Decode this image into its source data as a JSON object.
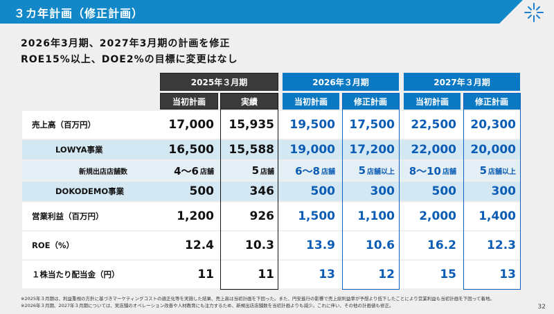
{
  "title": "３カ年計画（修正計画）",
  "subtitle_lines": [
    "2026年3月期、2027年3月期の計画を修正",
    "ROE15%以上、DOE2%の目標に変更はなし"
  ],
  "colors": {
    "title_bar": "#1288c8",
    "dark_header": "#3a3a3a",
    "blue_header": "#0a78c2",
    "plan_text": "#0a5cb5",
    "row_blue": "#d4e8f4"
  },
  "table": {
    "periods": [
      "2025年３月期",
      "2026年３月期",
      "2027年３月期"
    ],
    "columns": [
      "当初計画",
      "実績",
      "当初計画",
      "修正計画",
      "当初計画",
      "修正計画"
    ],
    "rows": [
      {
        "label": "売上高（百万円）",
        "style": "white",
        "indent": 0,
        "values": [
          {
            "v": "17,000"
          },
          {
            "v": "15,935"
          },
          {
            "v": "19,500"
          },
          {
            "v": "17,500"
          },
          {
            "v": "22,500"
          },
          {
            "v": "20,300"
          }
        ]
      },
      {
        "label": "LOWYA事業",
        "style": "blue",
        "indent": 1,
        "values": [
          {
            "v": "16,500"
          },
          {
            "v": "15,588"
          },
          {
            "v": "19,000"
          },
          {
            "v": "17,200"
          },
          {
            "v": "22,000"
          },
          {
            "v": "20,000"
          }
        ]
      },
      {
        "label": "新規出店店舗数",
        "style": "pale",
        "indent": 2,
        "values": [
          {
            "v": "4～6",
            "u": "店舗"
          },
          {
            "v": "5",
            "u": "店舗"
          },
          {
            "v": "6～8",
            "u": "店舗"
          },
          {
            "v": "5",
            "u": "店舗以上"
          },
          {
            "v": "8～10",
            "u": "店舗"
          },
          {
            "v": "5",
            "u": "店舗以上"
          }
        ]
      },
      {
        "label": "DOKODEMO事業",
        "style": "blue",
        "indent": 1,
        "values": [
          {
            "v": "500"
          },
          {
            "v": "346"
          },
          {
            "v": "500"
          },
          {
            "v": "300"
          },
          {
            "v": "500"
          },
          {
            "v": "300"
          }
        ]
      },
      {
        "label": "営業利益（百万円）",
        "style": "white",
        "indent": 0,
        "values": [
          {
            "v": "1,200"
          },
          {
            "v": "926"
          },
          {
            "v": "1,500"
          },
          {
            "v": "1,100"
          },
          {
            "v": "2,000"
          },
          {
            "v": "1,400"
          }
        ]
      },
      {
        "label": "ROE（%）",
        "style": "white",
        "indent": 0,
        "values": [
          {
            "v": "12.4"
          },
          {
            "v": "10.3"
          },
          {
            "v": "13.9"
          },
          {
            "v": "10.6"
          },
          {
            "v": "16.2"
          },
          {
            "v": "12.3"
          }
        ]
      },
      {
        "label": "１株当たり配当金（円）",
        "style": "white",
        "indent": 0,
        "values": [
          {
            "v": "11"
          },
          {
            "v": "11"
          },
          {
            "v": "13"
          },
          {
            "v": "12"
          },
          {
            "v": "15"
          },
          {
            "v": "13"
          }
        ]
      }
    ]
  },
  "notes": [
    "※2025年３月期は、利益重視の方針に基づきマーケティングコストの適正化等を実施した結果、売上高は当初計画を下回った。また、円安進行の影響で売上総利益率が予想より低下したことにより営業利益も当初計画を下回って着地。",
    "※2026年３月期、2027年３月期については、実店舗のオペレーション改善や人材教育にも注力するため、新規出店店舗数を当初計画よりも減少。これに伴い、その他の計画値も修正。"
  ],
  "page_number": "32"
}
